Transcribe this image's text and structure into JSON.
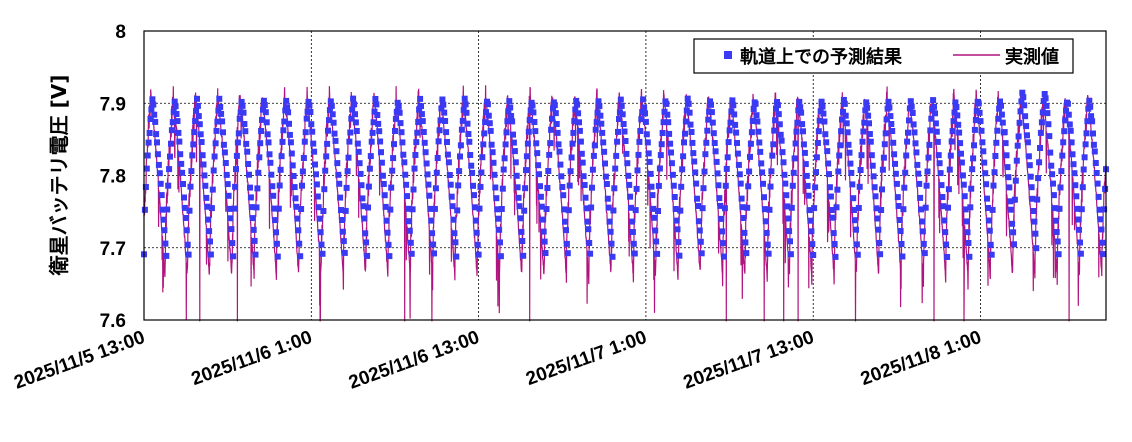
{
  "chart_data": {
    "type": "line",
    "ylabel": "衛星バッテリ電圧 [V]",
    "ylim": [
      7.6,
      8.0
    ],
    "yticks": [
      "7.6",
      "7.7",
      "7.8",
      "7.9",
      "8"
    ],
    "x_start": "2025/11/5 13:00",
    "x_end": "2025/11/8 10:00",
    "xticks": [
      "2025/11/5 13:00",
      "2025/11/6 1:00",
      "2025/11/6 13:00",
      "2025/11/7 1:00",
      "2025/11/7 13:00",
      "2025/11/8 1:00"
    ],
    "grid": true,
    "legend_position": "top-right",
    "colors": {
      "predicted": "#3a3af5",
      "measured": "#b0157f"
    },
    "cycle": {
      "orbit_minutes": 96,
      "min_v": 7.69,
      "max_v": 7.905
    },
    "series": [
      {
        "name": "軌道上での予測結果",
        "style": "square-markers"
      },
      {
        "name": "実測値",
        "style": "line"
      }
    ]
  }
}
